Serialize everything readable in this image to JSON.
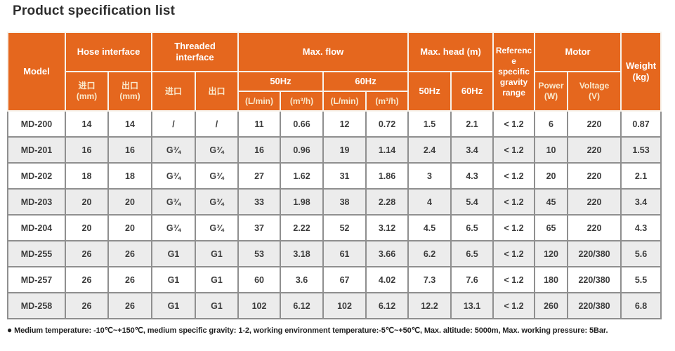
{
  "page": {
    "title": "Product specification list"
  },
  "colors": {
    "accent_orange": "#E5671E",
    "row_stripe": "#ECECEC",
    "grid_border": "#8F8F8F",
    "header_subtext": "#F9E9CD"
  },
  "table": {
    "header": {
      "model": "Model",
      "hose_interface": "Hose interface",
      "threaded_interface": "Threaded\ninterface",
      "max_flow": "Max. flow",
      "max_head": "Max. head (m)",
      "reference": "Reference specific gravity range",
      "motor": "Motor",
      "weight": "Weight\n(kg)",
      "inlet_mm": "进口\n(mm)",
      "outlet_mm": "出口\n(mm)",
      "inlet": "进口",
      "outlet": "出口",
      "hz50": "50Hz",
      "hz60": "60Hz",
      "l_min": "(L/min)",
      "m3_h": "(m³/h)",
      "power_w": "Power\n(W)",
      "voltage_v": "Voltage\n(V)"
    },
    "row_keys": [
      "model",
      "hose_inlet",
      "hose_outlet",
      "thread_inlet",
      "thread_outlet",
      "flow50_lmin",
      "flow50_m3h",
      "flow60_lmin",
      "flow60_m3h",
      "head50",
      "head60",
      "ref_gravity",
      "power_w",
      "voltage_v",
      "weight_kg"
    ],
    "rows": [
      {
        "model": "MD-200",
        "hose_inlet": "14",
        "hose_outlet": "14",
        "thread_inlet": "/",
        "thread_outlet": "/",
        "flow50_lmin": "11",
        "flow50_m3h": "0.66",
        "flow60_lmin": "12",
        "flow60_m3h": "0.72",
        "head50": "1.5",
        "head60": "2.1",
        "ref_gravity": "< 1.2",
        "power_w": "6",
        "voltage_v": "220",
        "weight_kg": "0.87"
      },
      {
        "model": "MD-201",
        "hose_inlet": "16",
        "hose_outlet": "16",
        "thread_inlet": "G¾",
        "thread_outlet": "G¾",
        "flow50_lmin": "16",
        "flow50_m3h": "0.96",
        "flow60_lmin": "19",
        "flow60_m3h": "1.14",
        "head50": "2.4",
        "head60": "3.4",
        "ref_gravity": "< 1.2",
        "power_w": "10",
        "voltage_v": "220",
        "weight_kg": "1.53"
      },
      {
        "model": "MD-202",
        "hose_inlet": "18",
        "hose_outlet": "18",
        "thread_inlet": "G¾",
        "thread_outlet": "G¾",
        "flow50_lmin": "27",
        "flow50_m3h": "1.62",
        "flow60_lmin": "31",
        "flow60_m3h": "1.86",
        "head50": "3",
        "head60": "4.3",
        "ref_gravity": "< 1.2",
        "power_w": "20",
        "voltage_v": "220",
        "weight_kg": "2.1"
      },
      {
        "model": "MD-203",
        "hose_inlet": "20",
        "hose_outlet": "20",
        "thread_inlet": "G¾",
        "thread_outlet": "G¾",
        "flow50_lmin": "33",
        "flow50_m3h": "1.98",
        "flow60_lmin": "38",
        "flow60_m3h": "2.28",
        "head50": "4",
        "head60": "5.4",
        "ref_gravity": "< 1.2",
        "power_w": "45",
        "voltage_v": "220",
        "weight_kg": "3.4"
      },
      {
        "model": "MD-204",
        "hose_inlet": "20",
        "hose_outlet": "20",
        "thread_inlet": "G¾",
        "thread_outlet": "G¾",
        "flow50_lmin": "37",
        "flow50_m3h": "2.22",
        "flow60_lmin": "52",
        "flow60_m3h": "3.12",
        "head50": "4.5",
        "head60": "6.5",
        "ref_gravity": "< 1.2",
        "power_w": "65",
        "voltage_v": "220",
        "weight_kg": "4.3"
      },
      {
        "model": "MD-255",
        "hose_inlet": "26",
        "hose_outlet": "26",
        "thread_inlet": "G1",
        "thread_outlet": "G1",
        "flow50_lmin": "53",
        "flow50_m3h": "3.18",
        "flow60_lmin": "61",
        "flow60_m3h": "3.66",
        "head50": "6.2",
        "head60": "6.5",
        "ref_gravity": "< 1.2",
        "power_w": "120",
        "voltage_v": "220/380",
        "weight_kg": "5.6"
      },
      {
        "model": "MD-257",
        "hose_inlet": "26",
        "hose_outlet": "26",
        "thread_inlet": "G1",
        "thread_outlet": "G1",
        "flow50_lmin": "60",
        "flow50_m3h": "3.6",
        "flow60_lmin": "67",
        "flow60_m3h": "4.02",
        "head50": "7.3",
        "head60": "7.6",
        "ref_gravity": "< 1.2",
        "power_w": "180",
        "voltage_v": "220/380",
        "weight_kg": "5.5"
      },
      {
        "model": "MD-258",
        "hose_inlet": "26",
        "hose_outlet": "26",
        "thread_inlet": "G1",
        "thread_outlet": "G1",
        "flow50_lmin": "102",
        "flow50_m3h": "6.12",
        "flow60_lmin": "102",
        "flow60_m3h": "6.12",
        "head50": "12.2",
        "head60": "13.1",
        "ref_gravity": "< 1.2",
        "power_w": "260",
        "voltage_v": "220/380",
        "weight_kg": "6.8"
      }
    ]
  },
  "footnote": {
    "bullet": "●",
    "text": "Medium temperature: -10℃~+150℃, medium specific gravity: 1-2, working environment temperature:-5℃~+50℃, Max. altitude: 5000m, Max. working pressure: 5Bar."
  }
}
